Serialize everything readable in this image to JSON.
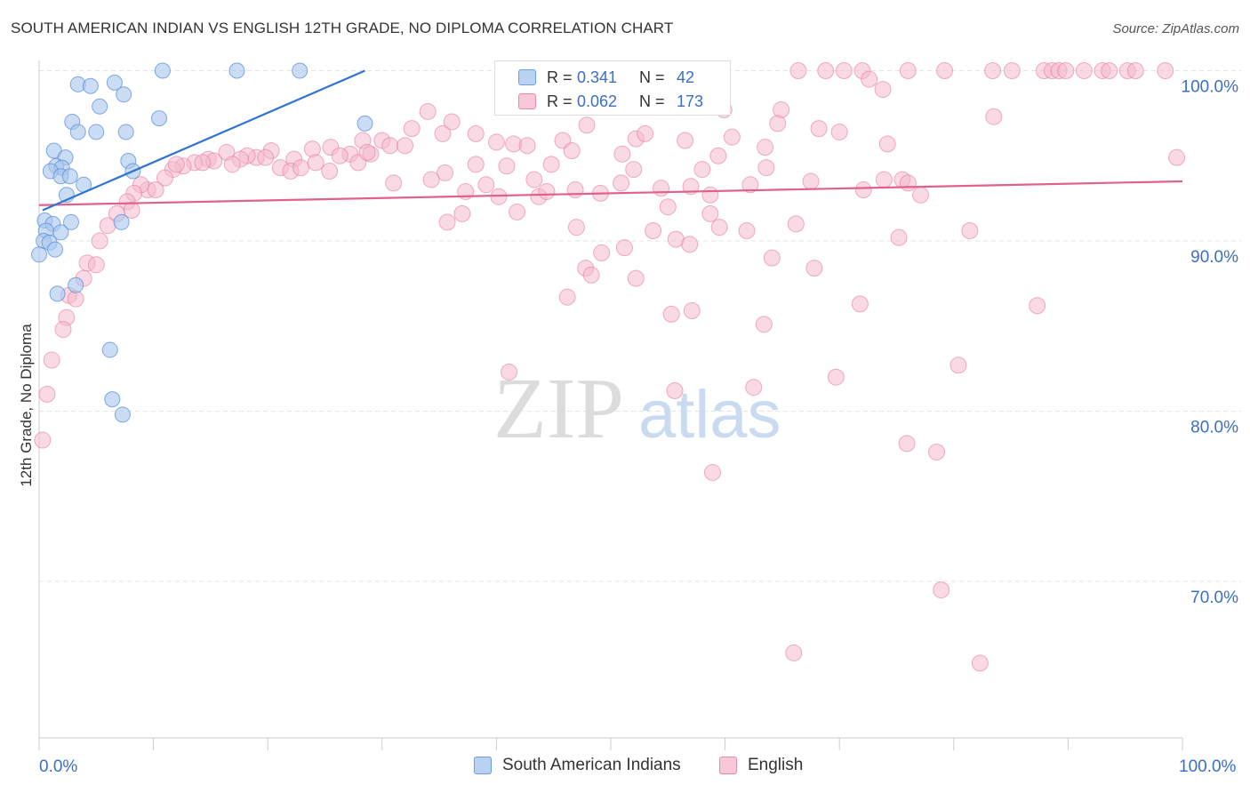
{
  "title": "SOUTH AMERICAN INDIAN VS ENGLISH 12TH GRADE, NO DIPLOMA CORRELATION CHART",
  "source": "Source: ZipAtlas.com",
  "watermark": {
    "zip": "ZIP",
    "atlas": "atlas"
  },
  "legend": {
    "rows": [
      {
        "r_label": "R =",
        "r_value": "0.341",
        "n_label": "N =",
        "n_value": "42"
      },
      {
        "r_label": "R =",
        "r_value": "0.062",
        "n_label": "N =",
        "n_value": "173"
      }
    ]
  },
  "bottom_legend": {
    "blue": "South American Indians",
    "pink": "English"
  },
  "x_tick_labels": {
    "min": "0.0%",
    "max": "100.0%"
  },
  "colors": {
    "blue": "#5b8fd8",
    "blue_fill": "#a9c6ef",
    "pink": "#e5709a",
    "pink_fill": "#f4b9cc",
    "axis_text": "#3a6fc4"
  },
  "chart_data": {
    "type": "scatter",
    "title": "SOUTH AMERICAN INDIAN VS ENGLISH 12TH GRADE, NO DIPLOMA CORRELATION CHART",
    "xlabel": "",
    "ylabel": "12th Grade, No Diploma",
    "xlim": [
      0,
      100
    ],
    "ylim": [
      60,
      101.5
    ],
    "yticks": [
      70,
      80,
      90,
      100
    ],
    "ytick_labels": [
      "70.0%",
      "80.0%",
      "90.0%",
      "100.0%"
    ],
    "grid": true,
    "series": [
      {
        "name": "South American Indians",
        "color": "#5b8fd8",
        "R": 0.341,
        "N": 42,
        "trend": [
          [
            0.3,
            91.8
          ],
          [
            28.5,
            100.0
          ]
        ],
        "points": [
          [
            10.8,
            100
          ],
          [
            17.3,
            100
          ],
          [
            22.8,
            100
          ],
          [
            3.4,
            99.2
          ],
          [
            4.5,
            99.1
          ],
          [
            6.6,
            99.3
          ],
          [
            7.4,
            98.6
          ],
          [
            5.3,
            97.9
          ],
          [
            10.5,
            97.2
          ],
          [
            2.9,
            97.0
          ],
          [
            3.4,
            96.4
          ],
          [
            5.0,
            96.4
          ],
          [
            7.6,
            96.4
          ],
          [
            28.5,
            96.9
          ],
          [
            1.3,
            95.3
          ],
          [
            2.3,
            94.9
          ],
          [
            7.8,
            94.7
          ],
          [
            1.5,
            94.4
          ],
          [
            2.0,
            94.3
          ],
          [
            8.2,
            94.1
          ],
          [
            1.0,
            94.1
          ],
          [
            1.9,
            93.8
          ],
          [
            2.7,
            93.8
          ],
          [
            3.9,
            93.3
          ],
          [
            2.4,
            92.7
          ],
          [
            0.5,
            91.2
          ],
          [
            1.2,
            91.0
          ],
          [
            2.8,
            91.1
          ],
          [
            7.2,
            91.1
          ],
          [
            0.6,
            90.6
          ],
          [
            1.9,
            90.5
          ],
          [
            0.4,
            90.0
          ],
          [
            0.9,
            89.9
          ],
          [
            1.4,
            89.5
          ],
          [
            0.0,
            89.2
          ],
          [
            3.2,
            87.4
          ],
          [
            1.6,
            86.9
          ],
          [
            6.2,
            83.6
          ],
          [
            6.4,
            80.7
          ],
          [
            7.3,
            79.8
          ]
        ]
      },
      {
        "name": "English",
        "color": "#e5709a",
        "R": 0.062,
        "N": 173,
        "trend": [
          [
            0,
            92.1
          ],
          [
            100,
            93.5
          ]
        ],
        "points": [
          [
            66.4,
            100
          ],
          [
            68.8,
            100
          ],
          [
            70.4,
            100
          ],
          [
            72.0,
            100
          ],
          [
            76.0,
            100
          ],
          [
            79.2,
            100
          ],
          [
            83.4,
            100
          ],
          [
            85.1,
            100
          ],
          [
            87.9,
            100
          ],
          [
            88.6,
            100
          ],
          [
            89.2,
            100
          ],
          [
            89.8,
            100
          ],
          [
            91.4,
            100
          ],
          [
            93.0,
            100
          ],
          [
            93.6,
            100
          ],
          [
            95.2,
            100
          ],
          [
            95.9,
            100
          ],
          [
            98.5,
            100
          ],
          [
            72.6,
            99.5
          ],
          [
            73.8,
            98.9
          ],
          [
            59.9,
            97.7
          ],
          [
            83.5,
            97.3
          ],
          [
            44.7,
            97.9
          ],
          [
            34.0,
            97.6
          ],
          [
            64.9,
            97.7
          ],
          [
            36.1,
            97.0
          ],
          [
            47.9,
            96.8
          ],
          [
            32.6,
            96.6
          ],
          [
            64.6,
            96.9
          ],
          [
            68.2,
            96.6
          ],
          [
            70.0,
            96.4
          ],
          [
            35.3,
            96.3
          ],
          [
            38.2,
            96.3
          ],
          [
            28.3,
            95.9
          ],
          [
            30.0,
            95.9
          ],
          [
            30.7,
            95.6
          ],
          [
            40.0,
            95.8
          ],
          [
            41.5,
            95.7
          ],
          [
            45.8,
            95.9
          ],
          [
            52.2,
            96.0
          ],
          [
            53.0,
            96.3
          ],
          [
            56.5,
            95.9
          ],
          [
            60.6,
            96.1
          ],
          [
            74.2,
            95.7
          ],
          [
            63.5,
            95.5
          ],
          [
            23.9,
            95.4
          ],
          [
            25.5,
            95.5
          ],
          [
            27.2,
            95.1
          ],
          [
            29.0,
            95.1
          ],
          [
            32.0,
            95.6
          ],
          [
            42.7,
            95.6
          ],
          [
            46.6,
            95.3
          ],
          [
            51.0,
            95.1
          ],
          [
            59.4,
            95.0
          ],
          [
            20.3,
            95.3
          ],
          [
            19.0,
            94.9
          ],
          [
            18.2,
            95.0
          ],
          [
            16.4,
            95.2
          ],
          [
            14.8,
            94.8
          ],
          [
            17.6,
            94.8
          ],
          [
            19.8,
            94.9
          ],
          [
            22.3,
            94.8
          ],
          [
            13.6,
            94.6
          ],
          [
            15.3,
            94.7
          ],
          [
            12.6,
            94.4
          ],
          [
            11.7,
            94.2
          ],
          [
            11.0,
            93.7
          ],
          [
            12.0,
            94.5
          ],
          [
            14.3,
            94.6
          ],
          [
            16.9,
            94.5
          ],
          [
            21.1,
            94.3
          ],
          [
            25.4,
            94.1
          ],
          [
            27.9,
            94.6
          ],
          [
            35.5,
            94.0
          ],
          [
            38.2,
            94.5
          ],
          [
            40.9,
            94.4
          ],
          [
            44.8,
            94.5
          ],
          [
            52.0,
            94.2
          ],
          [
            58.0,
            94.2
          ],
          [
            63.6,
            94.3
          ],
          [
            9.5,
            93.0
          ],
          [
            8.9,
            93.3
          ],
          [
            10.2,
            93.0
          ],
          [
            8.3,
            92.8
          ],
          [
            7.7,
            92.3
          ],
          [
            8.1,
            91.8
          ],
          [
            6.8,
            91.6
          ],
          [
            6.0,
            90.9
          ],
          [
            22.0,
            94.1
          ],
          [
            22.9,
            94.3
          ],
          [
            24.2,
            94.6
          ],
          [
            26.3,
            95.0
          ],
          [
            28.7,
            95.2
          ],
          [
            31.0,
            93.4
          ],
          [
            34.3,
            93.6
          ],
          [
            39.1,
            93.3
          ],
          [
            43.3,
            93.6
          ],
          [
            50.9,
            93.4
          ],
          [
            62.2,
            93.3
          ],
          [
            73.9,
            93.6
          ],
          [
            37.3,
            92.9
          ],
          [
            40.2,
            92.6
          ],
          [
            43.7,
            92.6
          ],
          [
            44.4,
            92.9
          ],
          [
            46.9,
            93.0
          ],
          [
            49.1,
            92.8
          ],
          [
            54.4,
            93.1
          ],
          [
            57.0,
            93.2
          ],
          [
            58.7,
            92.7
          ],
          [
            67.5,
            93.5
          ],
          [
            72.1,
            93.0
          ],
          [
            75.5,
            93.6
          ],
          [
            76.0,
            93.4
          ],
          [
            77.1,
            92.7
          ],
          [
            37.0,
            91.6
          ],
          [
            41.8,
            91.7
          ],
          [
            55.0,
            92.0
          ],
          [
            58.7,
            91.6
          ],
          [
            66.2,
            91.0
          ],
          [
            35.7,
            91.1
          ],
          [
            47.0,
            90.8
          ],
          [
            53.7,
            90.6
          ],
          [
            55.7,
            90.1
          ],
          [
            59.5,
            90.8
          ],
          [
            61.9,
            90.6
          ],
          [
            75.2,
            90.2
          ],
          [
            81.4,
            90.6
          ],
          [
            5.3,
            90.0
          ],
          [
            4.2,
            88.7
          ],
          [
            5.0,
            88.6
          ],
          [
            3.9,
            87.8
          ],
          [
            2.6,
            86.8
          ],
          [
            3.2,
            86.6
          ],
          [
            49.2,
            89.3
          ],
          [
            51.2,
            89.6
          ],
          [
            56.9,
            89.8
          ],
          [
            64.1,
            89.0
          ],
          [
            47.8,
            88.4
          ],
          [
            48.3,
            88.0
          ],
          [
            52.2,
            87.8
          ],
          [
            67.8,
            88.4
          ],
          [
            46.2,
            86.7
          ],
          [
            71.8,
            86.3
          ],
          [
            87.3,
            86.2
          ],
          [
            55.3,
            85.7
          ],
          [
            57.1,
            85.9
          ],
          [
            63.4,
            85.1
          ],
          [
            2.4,
            85.5
          ],
          [
            2.1,
            84.8
          ],
          [
            1.1,
            83.0
          ],
          [
            0.7,
            81.0
          ],
          [
            0.3,
            78.3
          ],
          [
            41.1,
            82.3
          ],
          [
            80.4,
            82.7
          ],
          [
            69.7,
            82.0
          ],
          [
            55.6,
            81.2
          ],
          [
            62.5,
            81.4
          ],
          [
            75.9,
            78.1
          ],
          [
            78.5,
            77.6
          ],
          [
            58.9,
            76.4
          ],
          [
            78.9,
            69.5
          ],
          [
            66.0,
            65.8
          ],
          [
            82.3,
            65.2
          ],
          [
            99.5,
            94.9
          ]
        ]
      }
    ]
  }
}
